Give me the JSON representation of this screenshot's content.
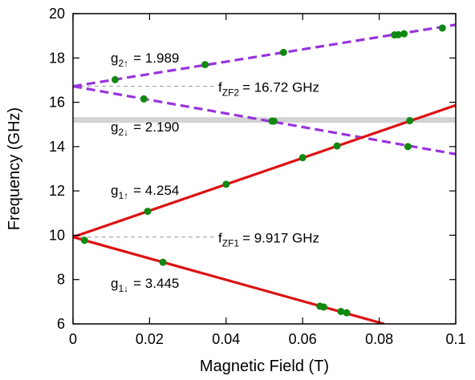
{
  "chart_data": {
    "type": "scatter",
    "xlabel": "Magnetic Field (T)",
    "ylabel": "Frequency (GHz)",
    "xlim": [
      0,
      0.1
    ],
    "ylim": [
      6,
      20
    ],
    "xticks": [
      0,
      0.02,
      0.04,
      0.06,
      0.08,
      0.1
    ],
    "xtick_labels": [
      "0",
      "0.02",
      "0.04",
      "0.06",
      "0.08",
      "0.1"
    ],
    "yticks": [
      6,
      8,
      10,
      12,
      14,
      16,
      18,
      20
    ],
    "ytick_labels": [
      "6",
      "8",
      "10",
      "12",
      "14",
      "16",
      "18",
      "20"
    ],
    "grid": false,
    "highlight_band": {
      "y": 15.2,
      "color": "#d3d3d3"
    },
    "fits": [
      {
        "label": "g",
        "sub": "2↑",
        "value": "= 1.989",
        "intercept": 16.72,
        "slope": 27.8,
        "x_end": 0.1,
        "style": "dashed",
        "color": "#9933dd"
      },
      {
        "label": "g",
        "sub": "2↓",
        "value": "= 2.190",
        "intercept": 16.72,
        "slope": -30.6,
        "x_end": 0.1,
        "style": "dashed",
        "color": "#9933dd"
      },
      {
        "label": "g",
        "sub": "1↑",
        "value": "= 4.254",
        "intercept": 9.917,
        "slope": 59.5,
        "x_end": 0.1,
        "style": "solid",
        "color": "#dd1111"
      },
      {
        "label": "g",
        "sub": "1↓",
        "value": "= 3.445",
        "intercept": 9.917,
        "slope": -48.2,
        "x_end": 0.0813,
        "style": "solid",
        "color": "#dd1111"
      }
    ],
    "zero_field": [
      {
        "label": "f",
        "sub": "ZF2",
        "value": "= 16.72 GHz",
        "y": 16.72
      },
      {
        "label": "f",
        "sub": "ZF1",
        "value": "= 9.917 GHz",
        "y": 9.917
      }
    ],
    "points_color": "#118811",
    "points": [
      {
        "x": 0.011,
        "y": 17.02
      },
      {
        "x": 0.0345,
        "y": 17.7
      },
      {
        "x": 0.055,
        "y": 18.25
      },
      {
        "x": 0.084,
        "y": 19.04
      },
      {
        "x": 0.085,
        "y": 19.05
      },
      {
        "x": 0.0865,
        "y": 19.09
      },
      {
        "x": 0.0965,
        "y": 19.35
      },
      {
        "x": 0.0185,
        "y": 16.15
      },
      {
        "x": 0.052,
        "y": 15.15
      },
      {
        "x": 0.0525,
        "y": 15.15
      },
      {
        "x": 0.0875,
        "y": 14.0
      },
      {
        "x": 0.0195,
        "y": 11.08
      },
      {
        "x": 0.04,
        "y": 12.3
      },
      {
        "x": 0.06,
        "y": 13.5
      },
      {
        "x": 0.069,
        "y": 14.03
      },
      {
        "x": 0.088,
        "y": 15.17
      },
      {
        "x": 0.003,
        "y": 9.77
      },
      {
        "x": 0.0235,
        "y": 8.78
      },
      {
        "x": 0.0645,
        "y": 6.8
      },
      {
        "x": 0.0655,
        "y": 6.76
      },
      {
        "x": 0.07,
        "y": 6.56
      },
      {
        "x": 0.0715,
        "y": 6.5
      }
    ]
  }
}
